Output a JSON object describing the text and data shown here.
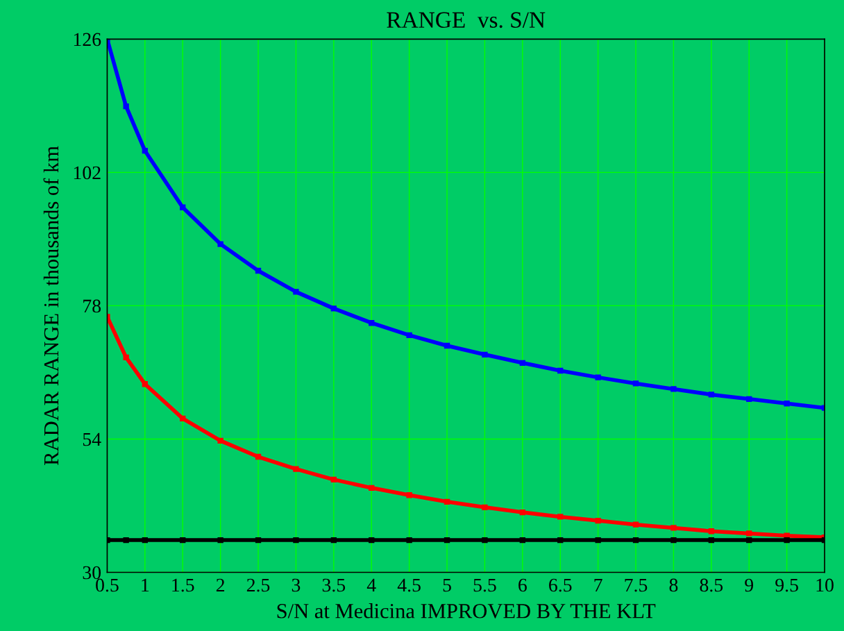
{
  "chart_data": {
    "type": "line",
    "title": "RANGE  vs. S/N",
    "xlabel": "S/N at Medicina IMPROVED BY THE KLT",
    "ylabel": "RADAR RANGE in thousands of km",
    "x": [
      0.5,
      0.75,
      1,
      1.5,
      2,
      2.5,
      3,
      3.5,
      4,
      4.5,
      5,
      5.5,
      6,
      6.5,
      7,
      7.5,
      8,
      8.5,
      9,
      9.5,
      10
    ],
    "series": [
      {
        "color": "#0000ff",
        "values": [
          126.0,
          113.9,
          105.9,
          95.7,
          89.1,
          84.3,
          80.5,
          77.5,
          74.9,
          72.7,
          70.8,
          69.2,
          67.7,
          66.3,
          65.1,
          64.0,
          63.0,
          62.0,
          61.2,
          60.4,
          59.6
        ]
      },
      {
        "color": "#ff0000",
        "values": [
          76.0,
          68.7,
          63.9,
          57.7,
          53.7,
          50.8,
          48.6,
          46.7,
          45.2,
          43.9,
          42.7,
          41.7,
          40.8,
          40.0,
          39.3,
          38.6,
          38.0,
          37.4,
          37.0,
          36.6,
          36.3
        ]
      },
      {
        "color": "#000000",
        "values": [
          35.8,
          35.8,
          35.8,
          35.8,
          35.8,
          35.8,
          35.8,
          35.8,
          35.8,
          35.8,
          35.8,
          35.8,
          35.8,
          35.8,
          35.8,
          35.8,
          35.8,
          35.8,
          35.8,
          35.8,
          35.8
        ]
      }
    ],
    "xlim": [
      0.5,
      10
    ],
    "xticks": [
      0.5,
      1,
      1.5,
      2,
      2.5,
      3,
      3.5,
      4,
      4.5,
      5,
      5.5,
      6,
      6.5,
      7,
      7.5,
      8,
      8.5,
      9,
      9.5,
      10
    ],
    "ylim": [
      30,
      126
    ],
    "yticks": [
      30,
      54,
      78,
      102,
      126
    ],
    "grid": true,
    "marker": "square",
    "line_style": "solid"
  }
}
